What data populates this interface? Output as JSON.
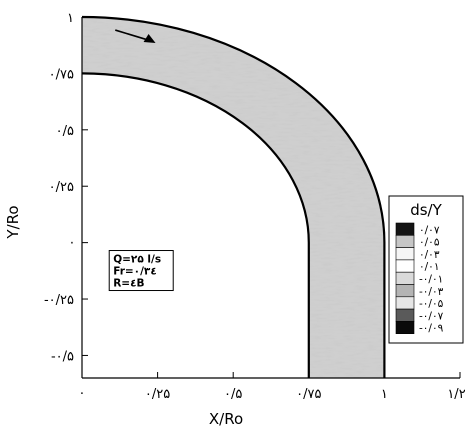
{
  "chart_data": {
    "type": "heatmap",
    "subtype": "filled-contour",
    "xlabel": "X/Ro",
    "ylabel": "Y/Ro",
    "x_ticks": [
      {
        "value": 0,
        "label": "·"
      },
      {
        "value": 0.25,
        "label": "۰/۲۵"
      },
      {
        "value": 0.5,
        "label": "۰/۵"
      },
      {
        "value": 0.75,
        "label": "۰/۷۵"
      },
      {
        "value": 1,
        "label": "۱"
      },
      {
        "value": 1.25,
        "label": "۱/۲۵"
      }
    ],
    "y_ticks": [
      {
        "value": 1,
        "label": "۱"
      },
      {
        "value": 0.75,
        "label": "۰/۷۵"
      },
      {
        "value": 0.5,
        "label": "۰/۵"
      },
      {
        "value": 0.25,
        "label": "۰/۲۵"
      },
      {
        "value": 0,
        "label": "·"
      },
      {
        "value": -0.25,
        "label": "-۰/۲۵"
      },
      {
        "value": -0.5,
        "label": "-۰/۵"
      }
    ],
    "xlim": [
      0,
      1.25
    ],
    "ylim": [
      -0.6,
      1.0
    ],
    "channel": {
      "inner_radius": 0.75,
      "outer_radius": 1.0,
      "inner_wall_x": 0.75,
      "outer_wall_x": 1.0,
      "y_end": -0.6
    },
    "info_box": {
      "lines": [
        "Q=۲۵ l/s",
        "Fr=۰/۳٤",
        "R=٤B"
      ]
    },
    "legend": {
      "title": "ds/Y",
      "position": "right",
      "levels": [
        {
          "label": "۰/۰۷",
          "value": 0.07,
          "color": "#141414"
        },
        {
          "label": "۰/۰۵",
          "value": 0.05,
          "color": "#c6c6c6"
        },
        {
          "label": "۰/۰۳",
          "value": 0.03,
          "color": "#f5f5f5"
        },
        {
          "label": "۰/۰۱",
          "value": 0.01,
          "color": "#ffffff"
        },
        {
          "label": "-۰/۰۱",
          "value": -0.01,
          "color": "#dadada"
        },
        {
          "label": "-۰/۰۳",
          "value": -0.03,
          "color": "#b4b4b4"
        },
        {
          "label": "-۰/۰۵",
          "value": -0.05,
          "color": "#e6e6e6"
        },
        {
          "label": "-۰/۰۷",
          "value": -0.07,
          "color": "#5a5a5a"
        },
        {
          "label": "-۰/۰۹",
          "value": -0.09,
          "color": "#0a0a0a"
        }
      ]
    },
    "fill_color": "#cfcfcf",
    "flow_direction": "clockwise"
  }
}
